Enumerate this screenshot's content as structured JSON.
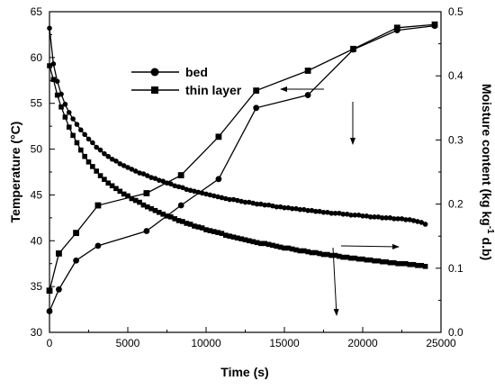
{
  "chart_data": {
    "type": "line",
    "title": "",
    "xlabel": "Time (s)",
    "ylabel": "Temperature (°C)",
    "y2label_parts": [
      "Moisture content (kg kg",
      "-1",
      " d.b)"
    ],
    "xlim": [
      0,
      25000
    ],
    "ylim": [
      30,
      65
    ],
    "y2lim": [
      0.0,
      0.5
    ],
    "x_ticks": [
      "0",
      "5000",
      "10000",
      "15000",
      "20000",
      "25000"
    ],
    "y_ticks": [
      "30",
      "35",
      "40",
      "45",
      "50",
      "55",
      "60",
      "65"
    ],
    "y2_ticks": [
      "0.0",
      "0.1",
      "0.2",
      "0.3",
      "0.4",
      "0.5"
    ],
    "legend": {
      "placement": "top-center",
      "entries": [
        {
          "name": "bed",
          "marker": "circle"
        },
        {
          "name": "thin layer",
          "marker": "square"
        }
      ]
    },
    "series": [
      {
        "name": "bed",
        "quantity": "temperature",
        "axis": "left",
        "marker": "circle",
        "x": [
          0,
          250,
          500,
          750,
          1000,
          1250,
          1500,
          1750,
          2000,
          2250,
          2500,
          2750,
          3000,
          3250,
          3500,
          3750,
          4000,
          4250,
          4500,
          4750,
          5000,
          5250,
          5500,
          5750,
          6000,
          6250,
          6500,
          6750,
          7000,
          7250,
          7500,
          7750,
          8000,
          8250,
          8500,
          8750,
          9000,
          9250,
          9500,
          9750,
          10000,
          10250,
          10500,
          10750,
          11000,
          11250,
          11500,
          11750,
          12000,
          12250,
          12500,
          12750,
          13000,
          13250,
          13500,
          13750,
          14000,
          14250,
          14500,
          14750,
          15000,
          15250,
          15500,
          15750,
          16000,
          16250,
          16500,
          16750,
          17000,
          17250,
          17500,
          17750,
          18000,
          18250,
          18500,
          18750,
          19000,
          19250,
          19500,
          19750,
          20000,
          20250,
          20500,
          20750,
          21000,
          21250,
          21500,
          21750,
          22000,
          22250,
          22500,
          22750,
          23000,
          23250,
          23500,
          23750,
          24000
        ],
        "values": [
          63.2,
          59.3,
          57.4,
          56.0,
          54.9,
          54.0,
          53.3,
          52.7,
          52.1,
          51.6,
          51.1,
          50.7,
          50.2,
          49.9,
          49.5,
          49.2,
          48.9,
          48.7,
          48.4,
          48.2,
          48.0,
          47.8,
          47.6,
          47.4,
          47.3,
          47.1,
          46.9,
          46.8,
          46.6,
          46.5,
          46.3,
          46.2,
          46.0,
          45.9,
          45.8,
          45.6,
          45.5,
          45.4,
          45.3,
          45.2,
          45.1,
          45.0,
          44.9,
          44.8,
          44.7,
          44.6,
          44.5,
          44.5,
          44.4,
          44.3,
          44.2,
          44.2,
          44.1,
          44.0,
          44.0,
          43.9,
          43.9,
          43.8,
          43.7,
          43.7,
          43.6,
          43.6,
          43.5,
          43.5,
          43.4,
          43.4,
          43.3,
          43.3,
          43.2,
          43.2,
          43.1,
          43.1,
          43.0,
          43.0,
          43.0,
          42.9,
          42.9,
          42.8,
          42.8,
          42.8,
          42.7,
          42.7,
          42.6,
          42.6,
          42.6,
          42.5,
          42.5,
          42.5,
          42.4,
          42.4,
          42.4,
          42.3,
          42.3,
          42.2,
          42.1,
          42.0,
          41.8
        ]
      },
      {
        "name": "thin layer",
        "quantity": "temperature",
        "axis": "left",
        "marker": "square",
        "x": [
          0,
          250,
          500,
          750,
          1000,
          1250,
          1500,
          1750,
          2000,
          2250,
          2500,
          2750,
          3000,
          3250,
          3500,
          3750,
          4000,
          4250,
          4500,
          4750,
          5000,
          5250,
          5500,
          5750,
          6000,
          6250,
          6500,
          6750,
          7000,
          7250,
          7500,
          7750,
          8000,
          8250,
          8500,
          8750,
          9000,
          9250,
          9500,
          9750,
          10000,
          10250,
          10500,
          10750,
          11000,
          11250,
          11500,
          11750,
          12000,
          12250,
          12500,
          12750,
          13000,
          13250,
          13500,
          13750,
          14000,
          14250,
          14500,
          14750,
          15000,
          15250,
          15500,
          15750,
          16000,
          16250,
          16500,
          16750,
          17000,
          17250,
          17500,
          17750,
          18000,
          18250,
          18500,
          18750,
          19000,
          19250,
          19500,
          19750,
          20000,
          20250,
          20500,
          20750,
          21000,
          21250,
          21500,
          21750,
          22000,
          22250,
          22500,
          22750,
          23000,
          23250,
          23500,
          23750,
          24000
        ],
        "values": [
          59.1,
          57.6,
          55.9,
          54.6,
          53.5,
          52.4,
          51.5,
          50.7,
          49.9,
          49.2,
          48.6,
          48.1,
          47.6,
          47.1,
          46.7,
          46.3,
          46.0,
          45.7,
          45.4,
          45.1,
          44.9,
          44.6,
          44.4,
          44.2,
          43.9,
          43.7,
          43.5,
          43.3,
          43.1,
          42.9,
          42.7,
          42.6,
          42.4,
          42.2,
          42.1,
          41.9,
          41.8,
          41.6,
          41.5,
          41.4,
          41.2,
          41.1,
          41.0,
          40.9,
          40.8,
          40.6,
          40.5,
          40.4,
          40.3,
          40.2,
          40.1,
          40.0,
          39.9,
          39.8,
          39.7,
          39.7,
          39.6,
          39.5,
          39.4,
          39.3,
          39.2,
          39.2,
          39.1,
          39.0,
          38.9,
          38.9,
          38.8,
          38.7,
          38.7,
          38.6,
          38.5,
          38.5,
          38.4,
          38.4,
          38.3,
          38.2,
          38.2,
          38.1,
          38.1,
          38.0,
          38.0,
          37.9,
          37.9,
          37.8,
          37.8,
          37.7,
          37.7,
          37.6,
          37.6,
          37.5,
          37.5,
          37.5,
          37.4,
          37.4,
          37.3,
          37.3,
          37.2
        ]
      },
      {
        "name": "bed",
        "quantity": "moisture content",
        "axis": "right",
        "marker": "circle",
        "x": [
          0,
          600,
          1700,
          3100,
          6200,
          8400,
          10800,
          13200,
          16500,
          19400,
          22200,
          24600
        ],
        "values": [
          0.033,
          0.067,
          0.112,
          0.135,
          0.158,
          0.198,
          0.239,
          0.35,
          0.37,
          0.441,
          0.471,
          0.478
        ]
      },
      {
        "name": "thin layer",
        "quantity": "moisture content",
        "axis": "right",
        "marker": "square",
        "x": [
          0,
          600,
          1700,
          3100,
          6200,
          8400,
          10800,
          13200,
          16500,
          19400,
          22200,
          24600
        ],
        "values": [
          0.065,
          0.123,
          0.155,
          0.198,
          0.217,
          0.245,
          0.305,
          0.377,
          0.408,
          0.442,
          0.475,
          0.48
        ]
      }
    ],
    "annotations": [
      {
        "type": "arrow",
        "direction": "left",
        "meaning": "points to left axis"
      },
      {
        "type": "arrow",
        "direction": "right",
        "meaning": "points to right axis"
      },
      {
        "type": "arrow",
        "direction": "down"
      },
      {
        "type": "arrow",
        "direction": "down"
      }
    ]
  }
}
